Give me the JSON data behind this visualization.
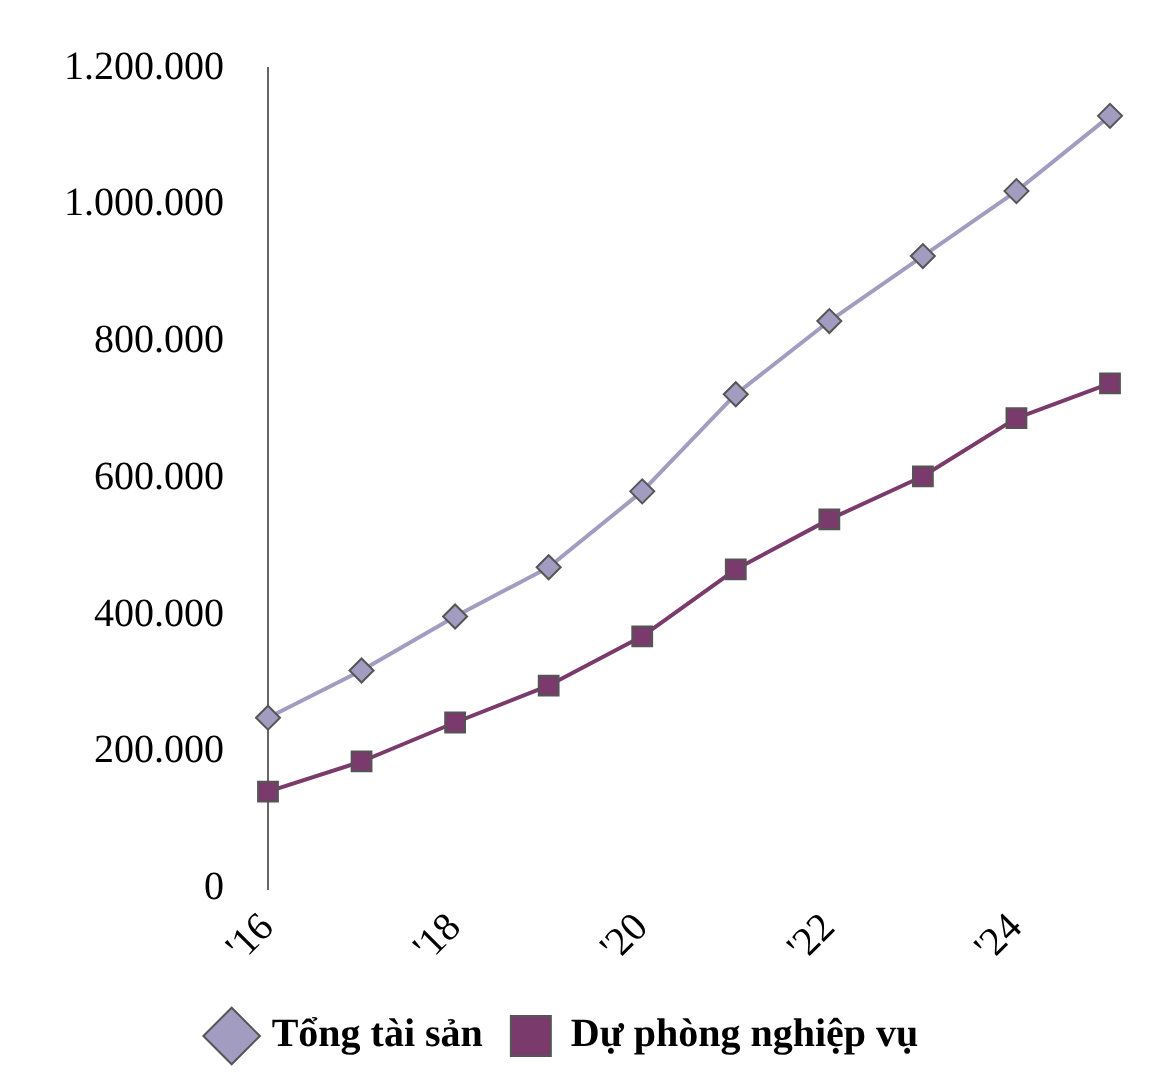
{
  "chart_data": {
    "type": "line",
    "categories": [
      "'16",
      null,
      "'18",
      null,
      "'20",
      null,
      "'22",
      null,
      "'24",
      null
    ],
    "series": [
      {
        "name": "Tổng tài sản",
        "color": "#a29cc0",
        "marker": "diamond",
        "values": [
          250000,
          319000,
          398000,
          470000,
          581000,
          723000,
          830000,
          925000,
          1020000,
          1130000
        ]
      },
      {
        "name": "Dự phòng nghiệp vụ",
        "color": "#7b3a6c",
        "marker": "square",
        "values": [
          142000,
          186000,
          243000,
          297000,
          369000,
          467000,
          540000,
          603000,
          688000,
          739000
        ]
      }
    ],
    "ylim": [
      0,
      1200000
    ],
    "yticks": [
      {
        "value": 0,
        "label": "0"
      },
      {
        "value": 200000,
        "label": "200.000"
      },
      {
        "value": 400000,
        "label": "400.000"
      },
      {
        "value": 600000,
        "label": "600.000"
      },
      {
        "value": 800000,
        "label": "800.000"
      },
      {
        "value": 1000000,
        "label": "1.000.000"
      },
      {
        "value": 1200000,
        "label": "1.200.000"
      }
    ],
    "grid": false,
    "legend": "bottom",
    "line_style": "solid"
  }
}
